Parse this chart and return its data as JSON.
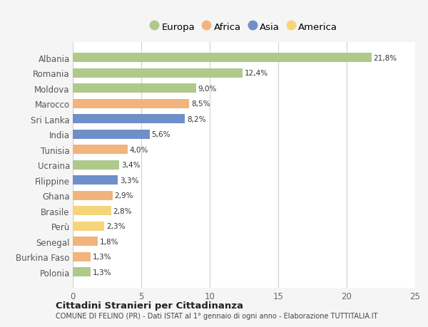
{
  "countries": [
    "Albania",
    "Romania",
    "Moldova",
    "Marocco",
    "Sri Lanka",
    "India",
    "Tunisia",
    "Ucraina",
    "Filippine",
    "Ghana",
    "Brasile",
    "Perù",
    "Senegal",
    "Burkina Faso",
    "Polonia"
  ],
  "values": [
    21.8,
    12.4,
    9.0,
    8.5,
    8.2,
    5.6,
    4.0,
    3.4,
    3.3,
    2.9,
    2.8,
    2.3,
    1.8,
    1.3,
    1.3
  ],
  "continents": [
    "Europa",
    "Europa",
    "Europa",
    "Africa",
    "Asia",
    "Asia",
    "Africa",
    "Europa",
    "Asia",
    "Africa",
    "America",
    "America",
    "Africa",
    "Africa",
    "Europa"
  ],
  "labels": [
    "21,8%",
    "12,4%",
    "9,0%",
    "8,5%",
    "8,2%",
    "5,6%",
    "4,0%",
    "3,4%",
    "3,3%",
    "2,9%",
    "2,8%",
    "2,3%",
    "1,8%",
    "1,3%",
    "1,3%"
  ],
  "colors": {
    "Europa": "#aec98a",
    "Africa": "#f0b47c",
    "Asia": "#6e8fc9",
    "America": "#f5d47a"
  },
  "legend_order": [
    "Europa",
    "Africa",
    "Asia",
    "America"
  ],
  "title": "Cittadini Stranieri per Cittadinanza",
  "subtitle": "COMUNE DI FELINO (PR) - Dati ISTAT al 1° gennaio di ogni anno - Elaborazione TUTTITALIA.IT",
  "xlim": [
    0,
    25
  ],
  "xticks": [
    0,
    5,
    10,
    15,
    20,
    25
  ],
  "background_color": "#f5f5f5",
  "plot_bg_color": "#ffffff",
  "grid_color": "#d0d0d0"
}
